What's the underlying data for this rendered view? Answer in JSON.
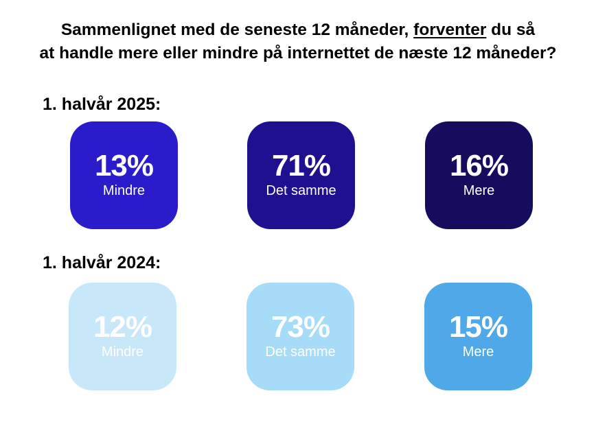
{
  "question": {
    "line1_before": "Sammenlignet med de seneste 12 måneder, ",
    "line1_emphasis": "forventer",
    "line1_after": " du så",
    "line2": "at handle mere eller mindre på internettet de næste 12 måneder?"
  },
  "chart_data": {
    "type": "table",
    "unit": "%",
    "categories": [
      "Mindre",
      "Det samme",
      "Mere"
    ],
    "series": [
      {
        "name": "1. halvår 2025:",
        "values": [
          13,
          71,
          16
        ],
        "labels": [
          "13%",
          "71%",
          "16%"
        ],
        "colors": [
          "#2A1BCB",
          "#1E108E",
          "#150C5E"
        ]
      },
      {
        "name": "1. halvår 2024:",
        "values": [
          12,
          73,
          15
        ],
        "labels": [
          "12%",
          "73%",
          "15%"
        ],
        "colors": [
          "#C8E8FA",
          "#A6DCF8",
          "#4FA9E8"
        ]
      }
    ]
  }
}
